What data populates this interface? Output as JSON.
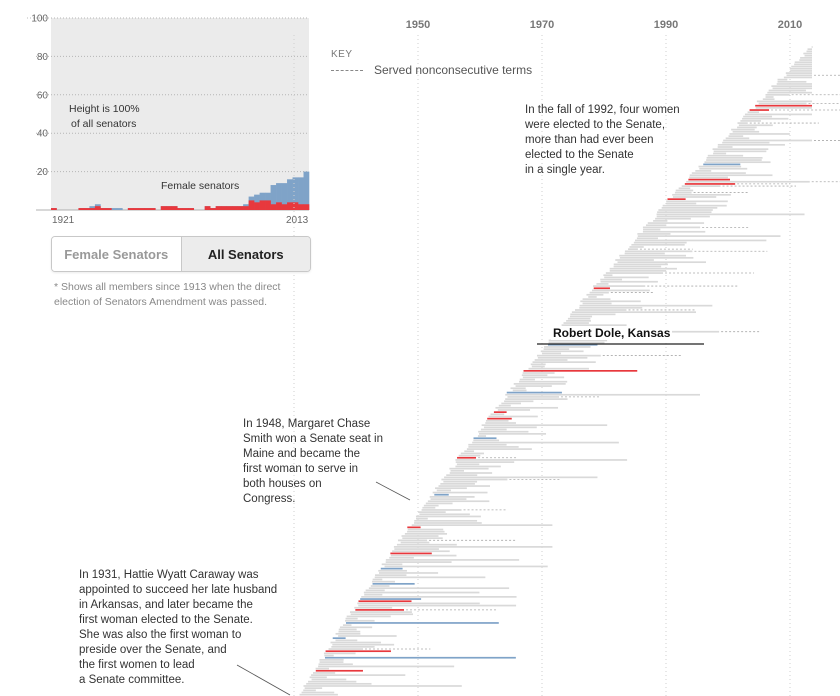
{
  "colors": {
    "female": "#e8383d",
    "male_gray": "#d9d9d9",
    "all_blue": "#7fa3c8",
    "inset_bg": "#ebebeb",
    "highlight": "#222222"
  },
  "inset": {
    "annotation_height": [
      "Height is 100%",
      "of all senators"
    ],
    "annotation_female": "Female senators",
    "x_start_label": "1921",
    "x_end_label": "2013"
  },
  "toggle": {
    "female_label": "Female Senators",
    "all_label": "All Senators",
    "selected": "All Senators"
  },
  "footnote": "* Shows all members since 1913 when the direct election of Senators Amendment was passed.",
  "key": {
    "title": "KEY",
    "dashed_label": "Served nonconsecutive terms"
  },
  "annotations": {
    "a1992": [
      "In the fall of 1992, four women",
      "were elected to the Senate,",
      "more than had ever been",
      "elected to the Senate",
      "in a single year."
    ],
    "a1948": [
      "In 1948, Margaret Chase",
      "Smith won a Senate seat in",
      "Maine and became the",
      "first woman to serve in",
      "both houses on",
      "Congress."
    ],
    "a1931": [
      "In 1931, Hattie Wyatt Caraway was",
      "appointed to succeed her late husband",
      "in Arkansas, and later became the",
      "first woman elected to the Senate.",
      "She was also the first woman to",
      "preside over the Senate, and",
      "the first women to lead",
      "a Senate committee."
    ]
  },
  "highlight_label": "Robert Dole, Kansas",
  "chart_data": [
    {
      "type": "area",
      "title": "",
      "xlabel": "",
      "ylabel": "",
      "x_tick_labels": [
        "1921",
        "2013"
      ],
      "y_ticks": [
        20,
        40,
        60,
        80,
        100
      ],
      "ylim": [
        0,
        100
      ],
      "years": [
        1921,
        1923,
        1925,
        1927,
        1929,
        1931,
        1933,
        1935,
        1937,
        1939,
        1941,
        1943,
        1945,
        1947,
        1949,
        1951,
        1953,
        1955,
        1957,
        1959,
        1961,
        1963,
        1965,
        1967,
        1969,
        1971,
        1973,
        1975,
        1977,
        1979,
        1981,
        1983,
        1985,
        1987,
        1989,
        1991,
        1993,
        1995,
        1997,
        1999,
        2001,
        2003,
        2005,
        2007,
        2009,
        2011,
        2013
      ],
      "series": [
        {
          "name": "",
          "values": [
            1,
            0,
            0,
            0,
            0,
            1,
            1,
            2,
            3,
            1,
            1,
            1,
            1,
            0,
            1,
            1,
            1,
            1,
            1,
            0,
            2,
            2,
            2,
            1,
            1,
            1,
            0,
            0,
            2,
            1,
            2,
            2,
            2,
            2,
            2,
            3,
            7,
            8,
            9,
            9,
            13,
            14,
            14,
            16,
            17,
            17,
            20
          ]
        },
        {
          "name": "Female senators",
          "values": [
            1,
            0,
            0,
            0,
            0,
            1,
            1,
            1,
            2,
            1,
            1,
            0,
            0,
            0,
            1,
            1,
            1,
            1,
            1,
            0,
            2,
            2,
            2,
            1,
            1,
            1,
            0,
            0,
            2,
            1,
            2,
            2,
            2,
            2,
            2,
            2,
            5,
            4,
            5,
            5,
            3,
            4,
            3,
            4,
            4,
            3,
            3
          ]
        }
      ]
    },
    {
      "type": "bar",
      "title": "",
      "x_tick_labels": [
        "1950",
        "1970",
        "1990",
        "2010"
      ],
      "xlim": [
        1913,
        2013
      ],
      "series_note": "Senator tenure bars, sorted by start year",
      "highlight": {
        "name": "Robert Dole, Kansas",
        "start": 1969,
        "end": 1996
      }
    }
  ]
}
